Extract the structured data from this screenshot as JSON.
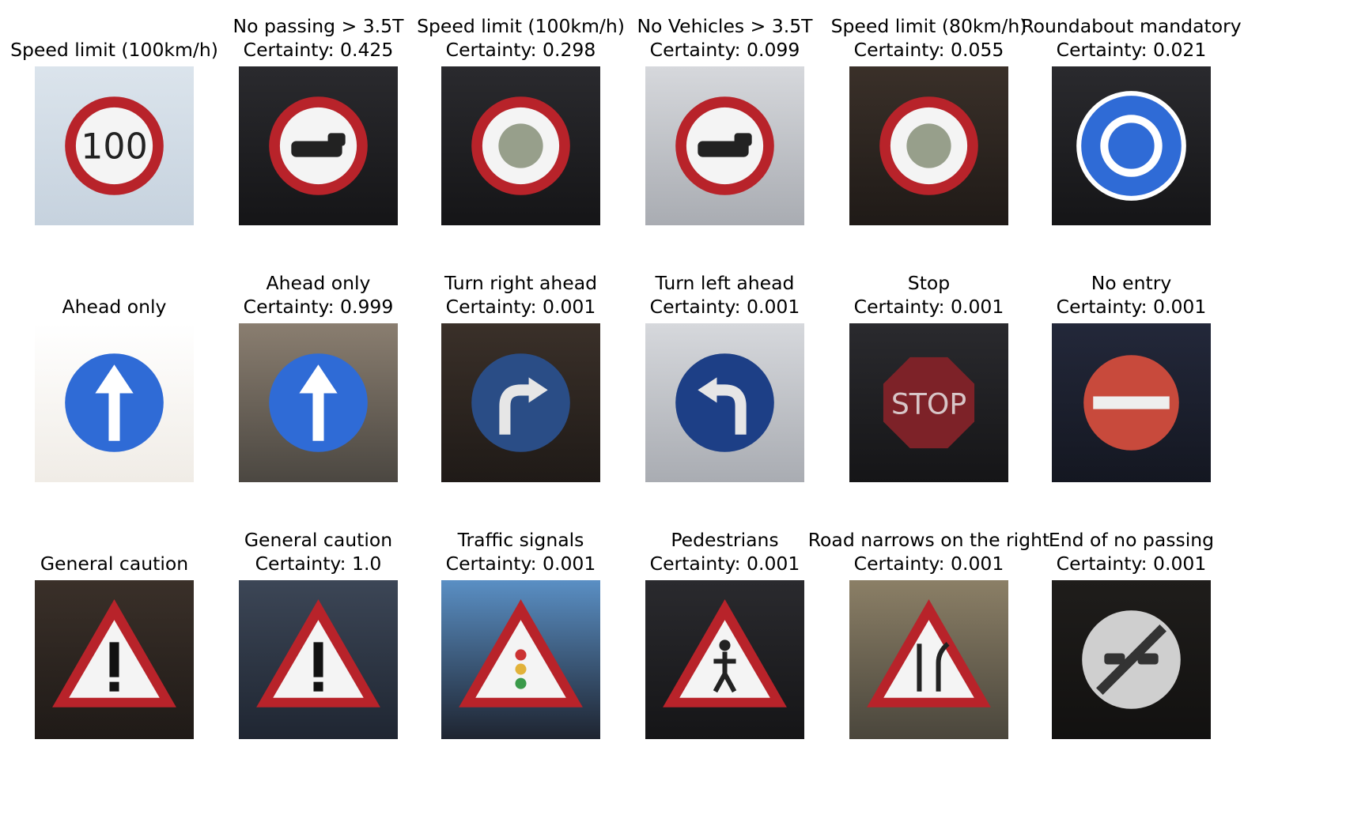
{
  "certainty_label": "Certainty: ",
  "rows": [
    {
      "cells": [
        {
          "name": "Speed limit (100km/h)",
          "certainty": null,
          "sign": "speed",
          "scene": "bright",
          "sign_text": "100"
        },
        {
          "name": "No passing > 3.5T",
          "certainty": "0.425",
          "sign": "truck",
          "scene": "dark"
        },
        {
          "name": "Speed limit (100km/h)",
          "certainty": "0.298",
          "sign": "speed-blank",
          "scene": "dark"
        },
        {
          "name": "No Vehicles > 3.5T",
          "certainty": "0.099",
          "sign": "lorry",
          "scene": "pale"
        },
        {
          "name": "Speed limit (80km/h)",
          "certainty": "0.055",
          "sign": "speed-blank",
          "scene": "brown"
        },
        {
          "name": "Roundabout mandatory",
          "certainty": "0.021",
          "sign": "roundabout",
          "scene": "dark"
        }
      ]
    },
    {
      "cells": [
        {
          "name": "Ahead only",
          "certainty": null,
          "sign": "ahead",
          "scene": "white"
        },
        {
          "name": "Ahead only",
          "certainty": "0.999",
          "sign": "ahead",
          "scene": "grey"
        },
        {
          "name": "Turn right ahead",
          "certainty": "0.001",
          "sign": "turn-right",
          "scene": "brown"
        },
        {
          "name": "Turn left ahead",
          "certainty": "0.001",
          "sign": "turn-left",
          "scene": "pale"
        },
        {
          "name": "Stop",
          "certainty": "0.001",
          "sign": "stop",
          "scene": "dark",
          "sign_text": "STOP"
        },
        {
          "name": "No entry",
          "certainty": "0.001",
          "sign": "no-entry",
          "scene": "navy"
        }
      ]
    },
    {
      "cells": [
        {
          "name": "General caution",
          "certainty": null,
          "sign": "caution",
          "scene": "brown"
        },
        {
          "name": "General caution",
          "certainty": "1.0",
          "sign": "caution",
          "scene": "slate"
        },
        {
          "name": "Traffic signals",
          "certainty": "0.001",
          "sign": "signals",
          "scene": "sky"
        },
        {
          "name": "Pedestrians",
          "certainty": "0.001",
          "sign": "pedestrian",
          "scene": "dark"
        },
        {
          "name": "Road narrows on the right",
          "certainty": "0.001",
          "sign": "narrows",
          "scene": "olive"
        },
        {
          "name": "End of no passing",
          "certainty": "0.001",
          "sign": "end-no-passing",
          "scene": "black"
        }
      ]
    }
  ],
  "colors": {
    "sign_red": "#b8232a",
    "sign_blue": "#2f6bd6",
    "sign_white": "#f4f4f4"
  }
}
